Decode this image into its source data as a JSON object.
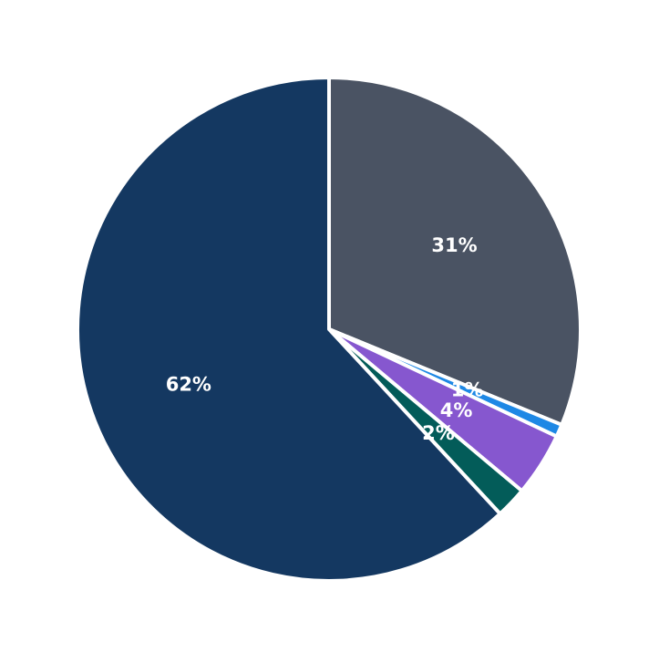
{
  "chart_data": {
    "type": "pie",
    "title": "",
    "legend": "none",
    "slices": [
      {
        "label": "31%",
        "value": 31.2,
        "color": "#4a5363"
      },
      {
        "label": "1%",
        "value": 0.8,
        "color": "#1e88e5"
      },
      {
        "label": "4%",
        "value": 4.1,
        "color": "#8657cf"
      },
      {
        "label": "2%",
        "value": 2.0,
        "color": "#035c59"
      },
      {
        "label": "62%",
        "value": 61.9,
        "color": "#143861"
      }
    ]
  }
}
